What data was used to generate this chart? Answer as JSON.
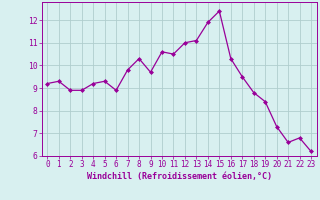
{
  "x": [
    0,
    1,
    2,
    3,
    4,
    5,
    6,
    7,
    8,
    9,
    10,
    11,
    12,
    13,
    14,
    15,
    16,
    17,
    18,
    19,
    20,
    21,
    22,
    23
  ],
  "y": [
    9.2,
    9.3,
    8.9,
    8.9,
    9.2,
    9.3,
    8.9,
    9.8,
    10.3,
    9.7,
    10.6,
    10.5,
    11.0,
    11.1,
    11.9,
    12.4,
    10.3,
    9.5,
    8.8,
    8.4,
    7.3,
    6.6,
    6.8,
    6.2
  ],
  "line_color": "#990099",
  "marker": "D",
  "marker_size": 2.0,
  "bg_color": "#d8f0f0",
  "grid_color": "#b0cece",
  "xlabel": "Windchill (Refroidissement éolien,°C)",
  "xlabel_color": "#990099",
  "tick_color": "#990099",
  "spine_color": "#990099",
  "ylim": [
    6,
    12.8
  ],
  "xlim": [
    -0.5,
    23.5
  ],
  "yticks": [
    6,
    7,
    8,
    9,
    10,
    11,
    12
  ],
  "xticks": [
    0,
    1,
    2,
    3,
    4,
    5,
    6,
    7,
    8,
    9,
    10,
    11,
    12,
    13,
    14,
    15,
    16,
    17,
    18,
    19,
    20,
    21,
    22,
    23
  ],
  "font_family": "monospace",
  "xlabel_fontsize": 6.0,
  "tick_fontsize": 5.5
}
